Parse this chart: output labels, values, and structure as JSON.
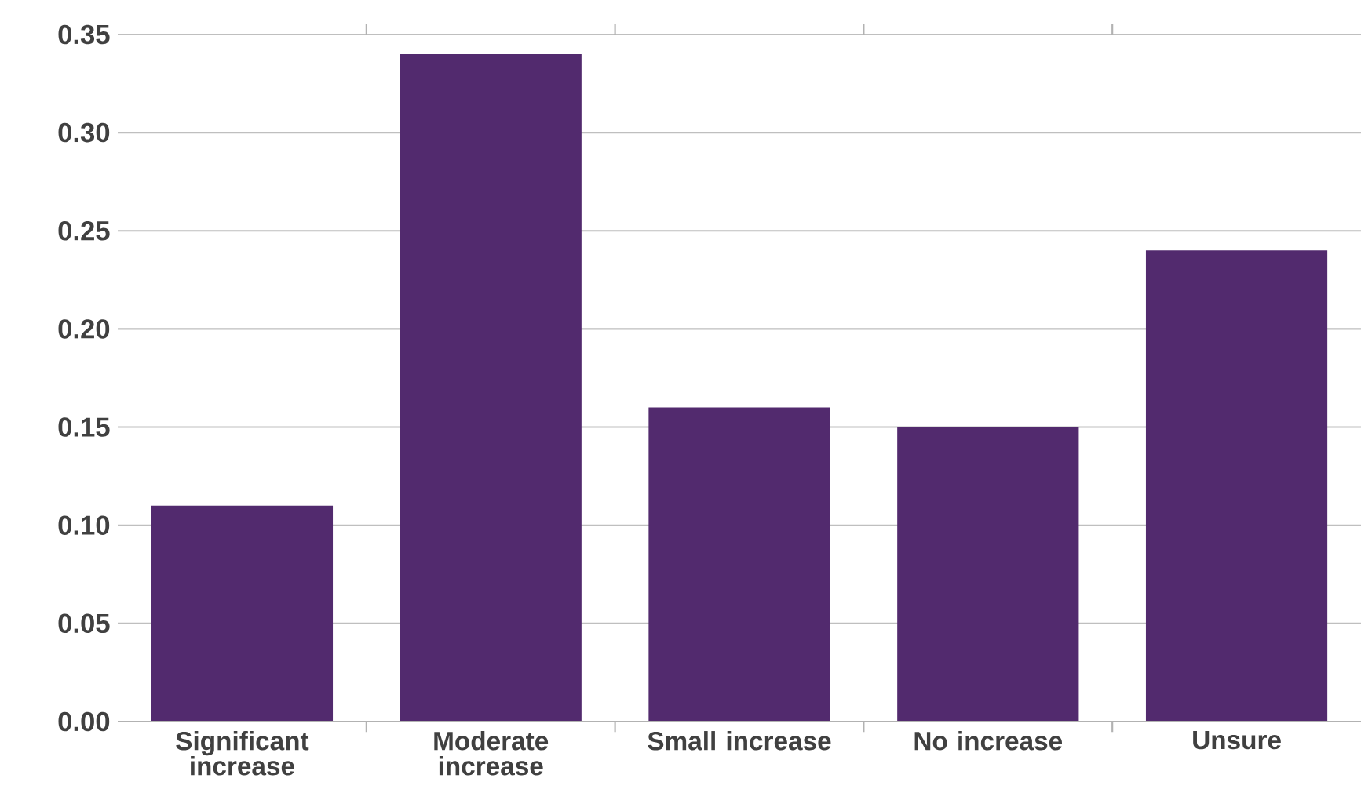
{
  "chart_data": {
    "type": "bar",
    "categories": [
      "Significant increase",
      "Moderate increase",
      "Small increase",
      "No increase",
      "Unsure"
    ],
    "values": [
      0.11,
      0.34,
      0.16,
      0.15,
      0.24
    ],
    "color": "#522a6e",
    "ylim": [
      0,
      0.35
    ],
    "yticks": [
      {
        "value": 0,
        "label": "0.00"
      },
      {
        "value": 0.05,
        "label": "0.05"
      },
      {
        "value": 0.1,
        "label": "0.10"
      },
      {
        "value": 0.15,
        "label": "0.15"
      },
      {
        "value": 0.2,
        "label": "0.20"
      },
      {
        "value": 0.25,
        "label": "0.25"
      },
      {
        "value": 0.3,
        "label": "0.30"
      },
      {
        "value": 0.35,
        "label": "0.35"
      }
    ],
    "grid": "y"
  }
}
